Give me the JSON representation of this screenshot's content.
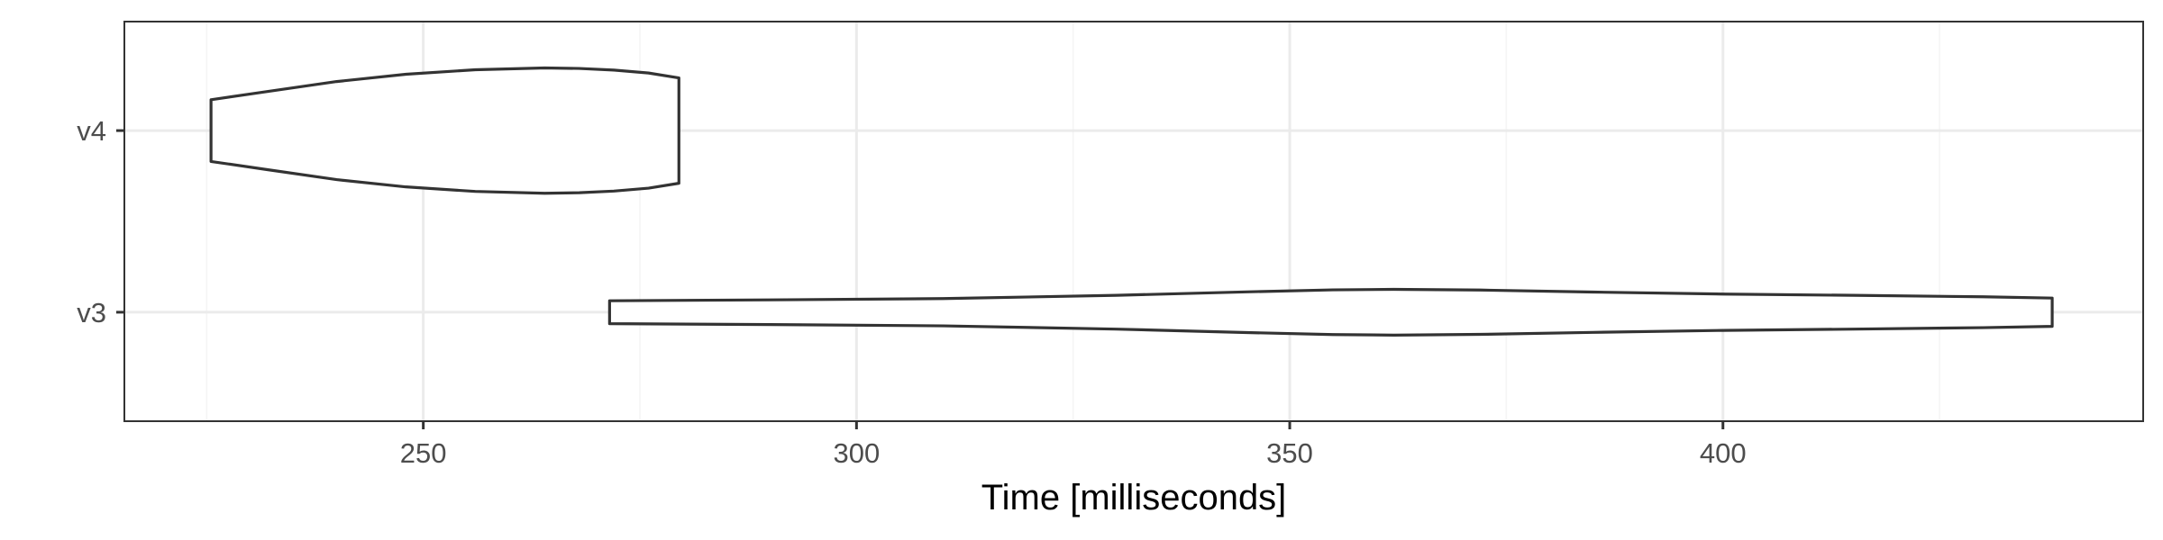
{
  "chart_data": {
    "type": "violin",
    "title": "",
    "xlabel": "Time [milliseconds]",
    "ylabel": "",
    "xlim": [
      215.5,
      448.5
    ],
    "x_ticks": [
      250,
      300,
      350,
      400
    ],
    "x_tick_labels": [
      "250",
      "300",
      "350",
      "400"
    ],
    "categories": [
      "v3",
      "v4"
    ],
    "grid": true,
    "legend": "none",
    "series": [
      {
        "category": "v4",
        "min": 225.5,
        "max": 279.5,
        "density_profile": {
          "x": [
            225.5,
            232,
            240,
            248,
            256,
            264,
            268,
            272,
            276,
            279.5
          ],
          "half_width": [
            0.17,
            0.215,
            0.27,
            0.31,
            0.335,
            0.345,
            0.342,
            0.333,
            0.317,
            0.29
          ]
        }
      },
      {
        "category": "v3",
        "min": 271.5,
        "max": 438,
        "density_profile": {
          "x": [
            271.5,
            290,
            310,
            330,
            345,
            355,
            362,
            372,
            385,
            400,
            415,
            430,
            438
          ],
          "half_width": [
            0.063,
            0.068,
            0.075,
            0.093,
            0.112,
            0.123,
            0.126,
            0.122,
            0.111,
            0.1,
            0.093,
            0.085,
            0.078
          ]
        }
      }
    ]
  },
  "colors": {
    "panel_border": "#333333",
    "grid_major": "#ebebeb",
    "grid_minor": "#f5f5f5",
    "violin_outline": "#333333",
    "violin_fill": "#ffffff",
    "tick_text": "#4d4d4d",
    "title_text": "#000000"
  }
}
